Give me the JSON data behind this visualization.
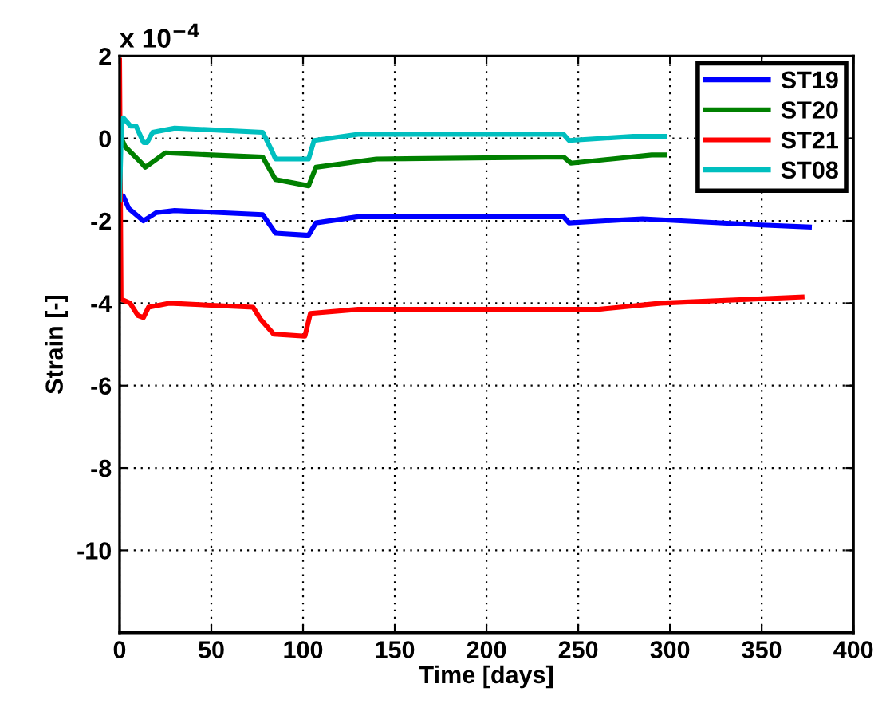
{
  "chart_data": {
    "type": "line",
    "xlabel": "Time [days]",
    "ylabel": "Strain [-]",
    "annotations": [
      "x 10$^{−4}$"
    ],
    "xlim": [
      0,
      400
    ],
    "xticks": [
      0,
      50,
      100,
      150,
      200,
      250,
      300,
      350,
      400
    ],
    "ylim": [
      -12,
      2
    ],
    "yticks": [
      -10,
      -8,
      -6,
      -4,
      -2,
      0,
      2
    ],
    "grid": true,
    "legend": "top right",
    "line_style": "solid",
    "series": [
      {
        "name": "ST19",
        "color": "#0000ff",
        "x": [
          0,
          2,
          5,
          13,
          20,
          30,
          78,
          85,
          103,
          107,
          130,
          242,
          245,
          285,
          350,
          376
        ],
        "values": [
          -1.5,
          -1.4,
          -1.7,
          -2.0,
          -1.8,
          -1.75,
          -1.85,
          -2.3,
          -2.35,
          -2.05,
          -1.9,
          -1.9,
          -2.05,
          -1.95,
          -2.1,
          -2.15
        ]
      },
      {
        "name": "ST20",
        "color": "#008000",
        "x": [
          1,
          3,
          12,
          14,
          25,
          50,
          78,
          85,
          103,
          107,
          140,
          242,
          246,
          290,
          297
        ],
        "values": [
          0,
          -0.2,
          -0.6,
          -0.7,
          -0.35,
          -0.4,
          -0.45,
          -1.0,
          -1.15,
          -0.7,
          -0.5,
          -0.45,
          -0.6,
          -0.4,
          -0.4
        ]
      },
      {
        "name": "ST21",
        "color": "#ff0000",
        "x": [
          0,
          0.8,
          5.7,
          10,
          13,
          15.7,
          27,
          72.8,
          77,
          84,
          101,
          104,
          130,
          244,
          261,
          295,
          372
        ],
        "values": [
          1.9,
          -3.9,
          -4.0,
          -4.3,
          -4.35,
          -4.1,
          -4.0,
          -4.1,
          -4.4,
          -4.75,
          -4.8,
          -4.25,
          -4.15,
          -4.15,
          -4.15,
          -4.0,
          -3.85
        ]
      },
      {
        "name": "ST08",
        "color": "#00bfbf",
        "x": [
          0,
          1,
          2,
          6,
          9,
          13,
          15,
          18,
          30,
          78,
          83,
          85,
          103,
          106,
          130,
          242,
          245,
          280,
          297
        ],
        "values": [
          -1.5,
          0.3,
          0.5,
          0.3,
          0.3,
          -0.1,
          -0.1,
          0.15,
          0.25,
          0.15,
          -0.3,
          -0.5,
          -0.5,
          -0.05,
          0.1,
          0.1,
          -0.05,
          0.05,
          0.05
        ]
      }
    ]
  }
}
